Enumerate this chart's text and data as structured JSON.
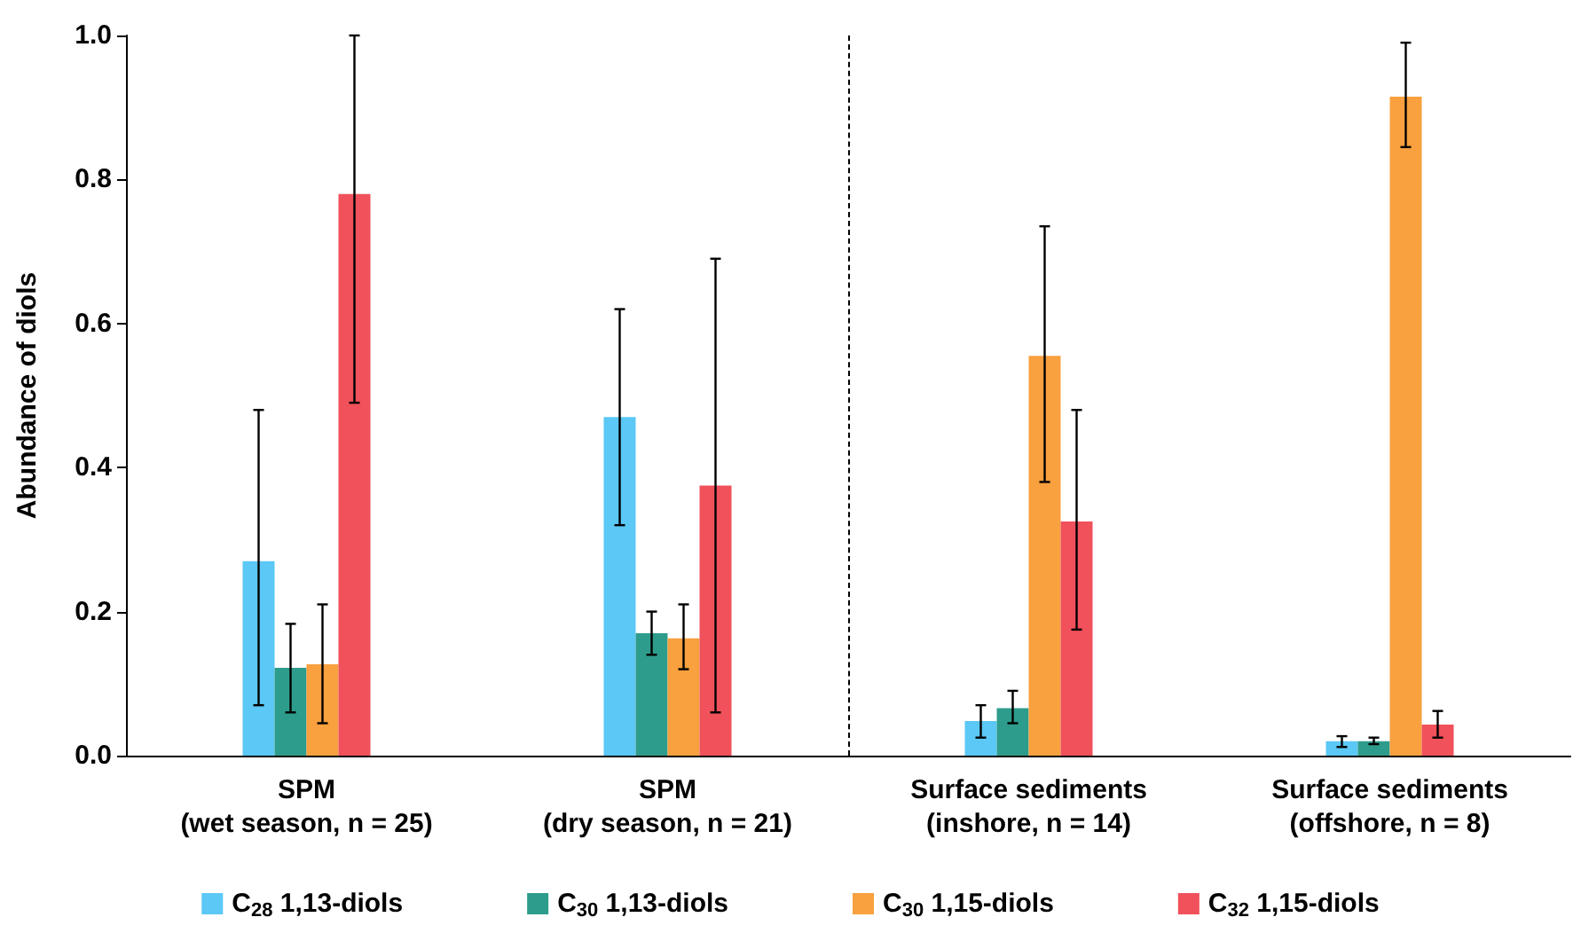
{
  "chart_data": {
    "type": "bar",
    "ylabel": "Abundance of diols",
    "categories": [
      "SPM\n(wet season, n = 25)",
      "SPM\n(dry season, n = 21)",
      "Surface sediments\n(inshore, n = 14)",
      "Surface sediments\n(offshore, n = 8)"
    ],
    "series": [
      {
        "name": "C$_{28}$ 1,13-diols",
        "color": "#5bc8f5",
        "values": [
          0.27,
          0.47,
          0.048,
          0.02
        ],
        "errors": [
          [
            0.07,
            0.48
          ],
          [
            0.32,
            0.62
          ],
          [
            0.025,
            0.07
          ],
          [
            0.012,
            0.027
          ]
        ]
      },
      {
        "name": "C$_{30}$ 1,13-diols",
        "color": "#2e9c8c",
        "values": [
          0.122,
          0.17,
          0.066,
          0.02
        ],
        "errors": [
          [
            0.06,
            0.183
          ],
          [
            0.14,
            0.2
          ],
          [
            0.045,
            0.09
          ],
          [
            0.016,
            0.025
          ]
        ]
      },
      {
        "name": "C$_{30}$ 1,15-diols",
        "color": "#f9a03f",
        "values": [
          0.127,
          0.163,
          0.555,
          0.915
        ],
        "errors": [
          [
            0.045,
            0.21
          ],
          [
            0.12,
            0.21
          ],
          [
            0.38,
            0.735
          ],
          [
            0.845,
            0.99
          ]
        ]
      },
      {
        "name": "C$_{32}$ 1,15-diols",
        "color": "#f0515a",
        "values": [
          0.78,
          0.375,
          0.325,
          0.043
        ],
        "errors": [
          [
            0.49,
            1.0
          ],
          [
            0.06,
            0.69
          ],
          [
            0.175,
            0.48
          ],
          [
            0.025,
            0.062
          ]
        ]
      }
    ],
    "ylim": [
      0,
      1
    ],
    "yticks": [
      {
        "value": 0,
        "label": "0.0"
      },
      {
        "value": 0.2,
        "label": "0.2"
      },
      {
        "value": 0.4,
        "label": "0.4"
      },
      {
        "value": 0.6,
        "label": "0.6"
      },
      {
        "value": 0.8,
        "label": "0.8"
      },
      {
        "value": 1,
        "label": "1.0"
      }
    ],
    "grid": false,
    "legend": "bottom"
  }
}
